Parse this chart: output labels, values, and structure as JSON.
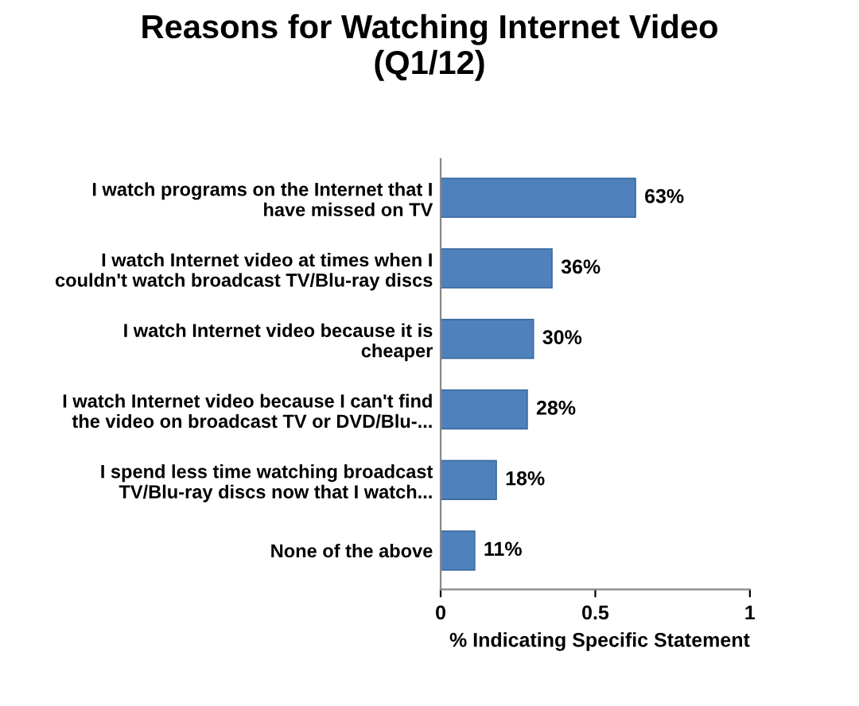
{
  "chart_data": {
    "type": "bar",
    "orientation": "horizontal",
    "title": "Reasons for Watching Internet Video\n(Q1/12)",
    "xlabel": "% Indicating Specific Statement",
    "categories": [
      "I watch programs on the Internet that I\nhave missed on TV",
      "I watch Internet video at times when I\ncouldn't watch broadcast TV/Blu-ray discs",
      "I watch Internet video because it is\ncheaper",
      "I watch Internet video because I can't find\nthe video on broadcast TV or DVD/Blu-...",
      "I spend less time watching broadcast\nTV/Blu-ray discs now that I watch...",
      "None of the above"
    ],
    "values": [
      0.63,
      0.36,
      0.3,
      0.28,
      0.18,
      0.11
    ],
    "value_labels": [
      "63%",
      "36%",
      "30%",
      "28%",
      "18%",
      "11%"
    ],
    "color": "#4f81bd",
    "xlim": [
      0,
      1
    ],
    "xticks": [
      0,
      0.5,
      1
    ],
    "grid": false
  }
}
